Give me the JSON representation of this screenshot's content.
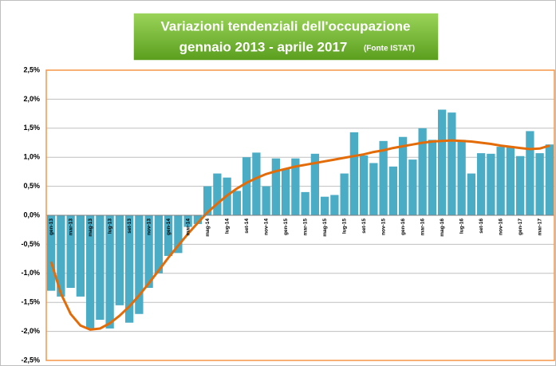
{
  "chart_data": {
    "type": "bar",
    "title": "Variazioni  tendenziali dell'occupazione",
    "subtitle": "gennaio 2013 -  aprile 2017",
    "source_note": "(Fonte ISTAT)",
    "categories": [
      "gen-13",
      null,
      "mar-13",
      null,
      "mag-13",
      null,
      "lug-13",
      null,
      "set-13",
      null,
      "nov-13",
      null,
      "gen-14",
      null,
      "mar-14",
      null,
      "mag-14",
      null,
      "lug-14",
      null,
      "set-14",
      null,
      "nov-14",
      null,
      "gen-15",
      null,
      "mar-15",
      null,
      "mag-15",
      null,
      "lug-15",
      null,
      "set-15",
      null,
      "nov-15",
      null,
      "gen-16",
      null,
      "mar-16",
      null,
      "mag-16",
      null,
      "lug-16",
      null,
      "set-16",
      null,
      "nov-16",
      null,
      "gen-17",
      null,
      "mar-17",
      null
    ],
    "series": [
      {
        "type": "bar",
        "color": "#4bacc6",
        "values": [
          -1.3,
          -1.4,
          -1.25,
          -1.4,
          -1.95,
          -1.8,
          -1.95,
          -1.55,
          -1.85,
          -1.7,
          -1.25,
          -1.0,
          -0.7,
          -0.65,
          -0.2,
          -0.15,
          0.5,
          0.72,
          0.65,
          0.42,
          1.0,
          1.08,
          0.5,
          0.98,
          0.8,
          0.98,
          0.4,
          1.06,
          0.32,
          0.35,
          0.72,
          1.43,
          1.03,
          0.9,
          1.28,
          0.84,
          1.35,
          0.96,
          1.5,
          1.3,
          1.82,
          1.77,
          1.3,
          0.72,
          1.07,
          1.06,
          1.18,
          1.18,
          1.02,
          1.45,
          1.07,
          1.22
        ]
      },
      {
        "type": "line",
        "color": "#e36c09",
        "values": [
          -0.8,
          -1.35,
          -1.7,
          -1.9,
          -1.97,
          -1.95,
          -1.86,
          -1.73,
          -1.57,
          -1.38,
          -1.17,
          -0.95,
          -0.73,
          -0.52,
          -0.32,
          -0.13,
          0.05,
          0.2,
          0.34,
          0.46,
          0.56,
          0.64,
          0.71,
          0.76,
          0.8,
          0.84,
          0.87,
          0.9,
          0.93,
          0.96,
          0.99,
          1.02,
          1.05,
          1.09,
          1.12,
          1.16,
          1.19,
          1.22,
          1.25,
          1.27,
          1.28,
          1.29,
          1.28,
          1.27,
          1.25,
          1.23,
          1.2,
          1.18,
          1.16,
          1.14,
          1.15,
          1.2
        ]
      }
    ],
    "ylim": [
      -2.5,
      2.5
    ],
    "yticks": [
      {
        "value": -2.5,
        "label": "-2,5%"
      },
      {
        "value": -2.0,
        "label": "-2,0%"
      },
      {
        "value": -1.5,
        "label": "-1,5%"
      },
      {
        "value": -1.0,
        "label": "-1,0%"
      },
      {
        "value": -0.5,
        "label": "-0,5%"
      },
      {
        "value": 0,
        "label": "0,0%"
      },
      {
        "value": 0.5,
        "label": "0,5%"
      },
      {
        "value": 1.0,
        "label": "1,0%"
      },
      {
        "value": 1.5,
        "label": "1,5%"
      },
      {
        "value": 2.0,
        "label": "2,0%"
      },
      {
        "value": 2.5,
        "label": "2,5%"
      }
    ],
    "grid": true
  }
}
